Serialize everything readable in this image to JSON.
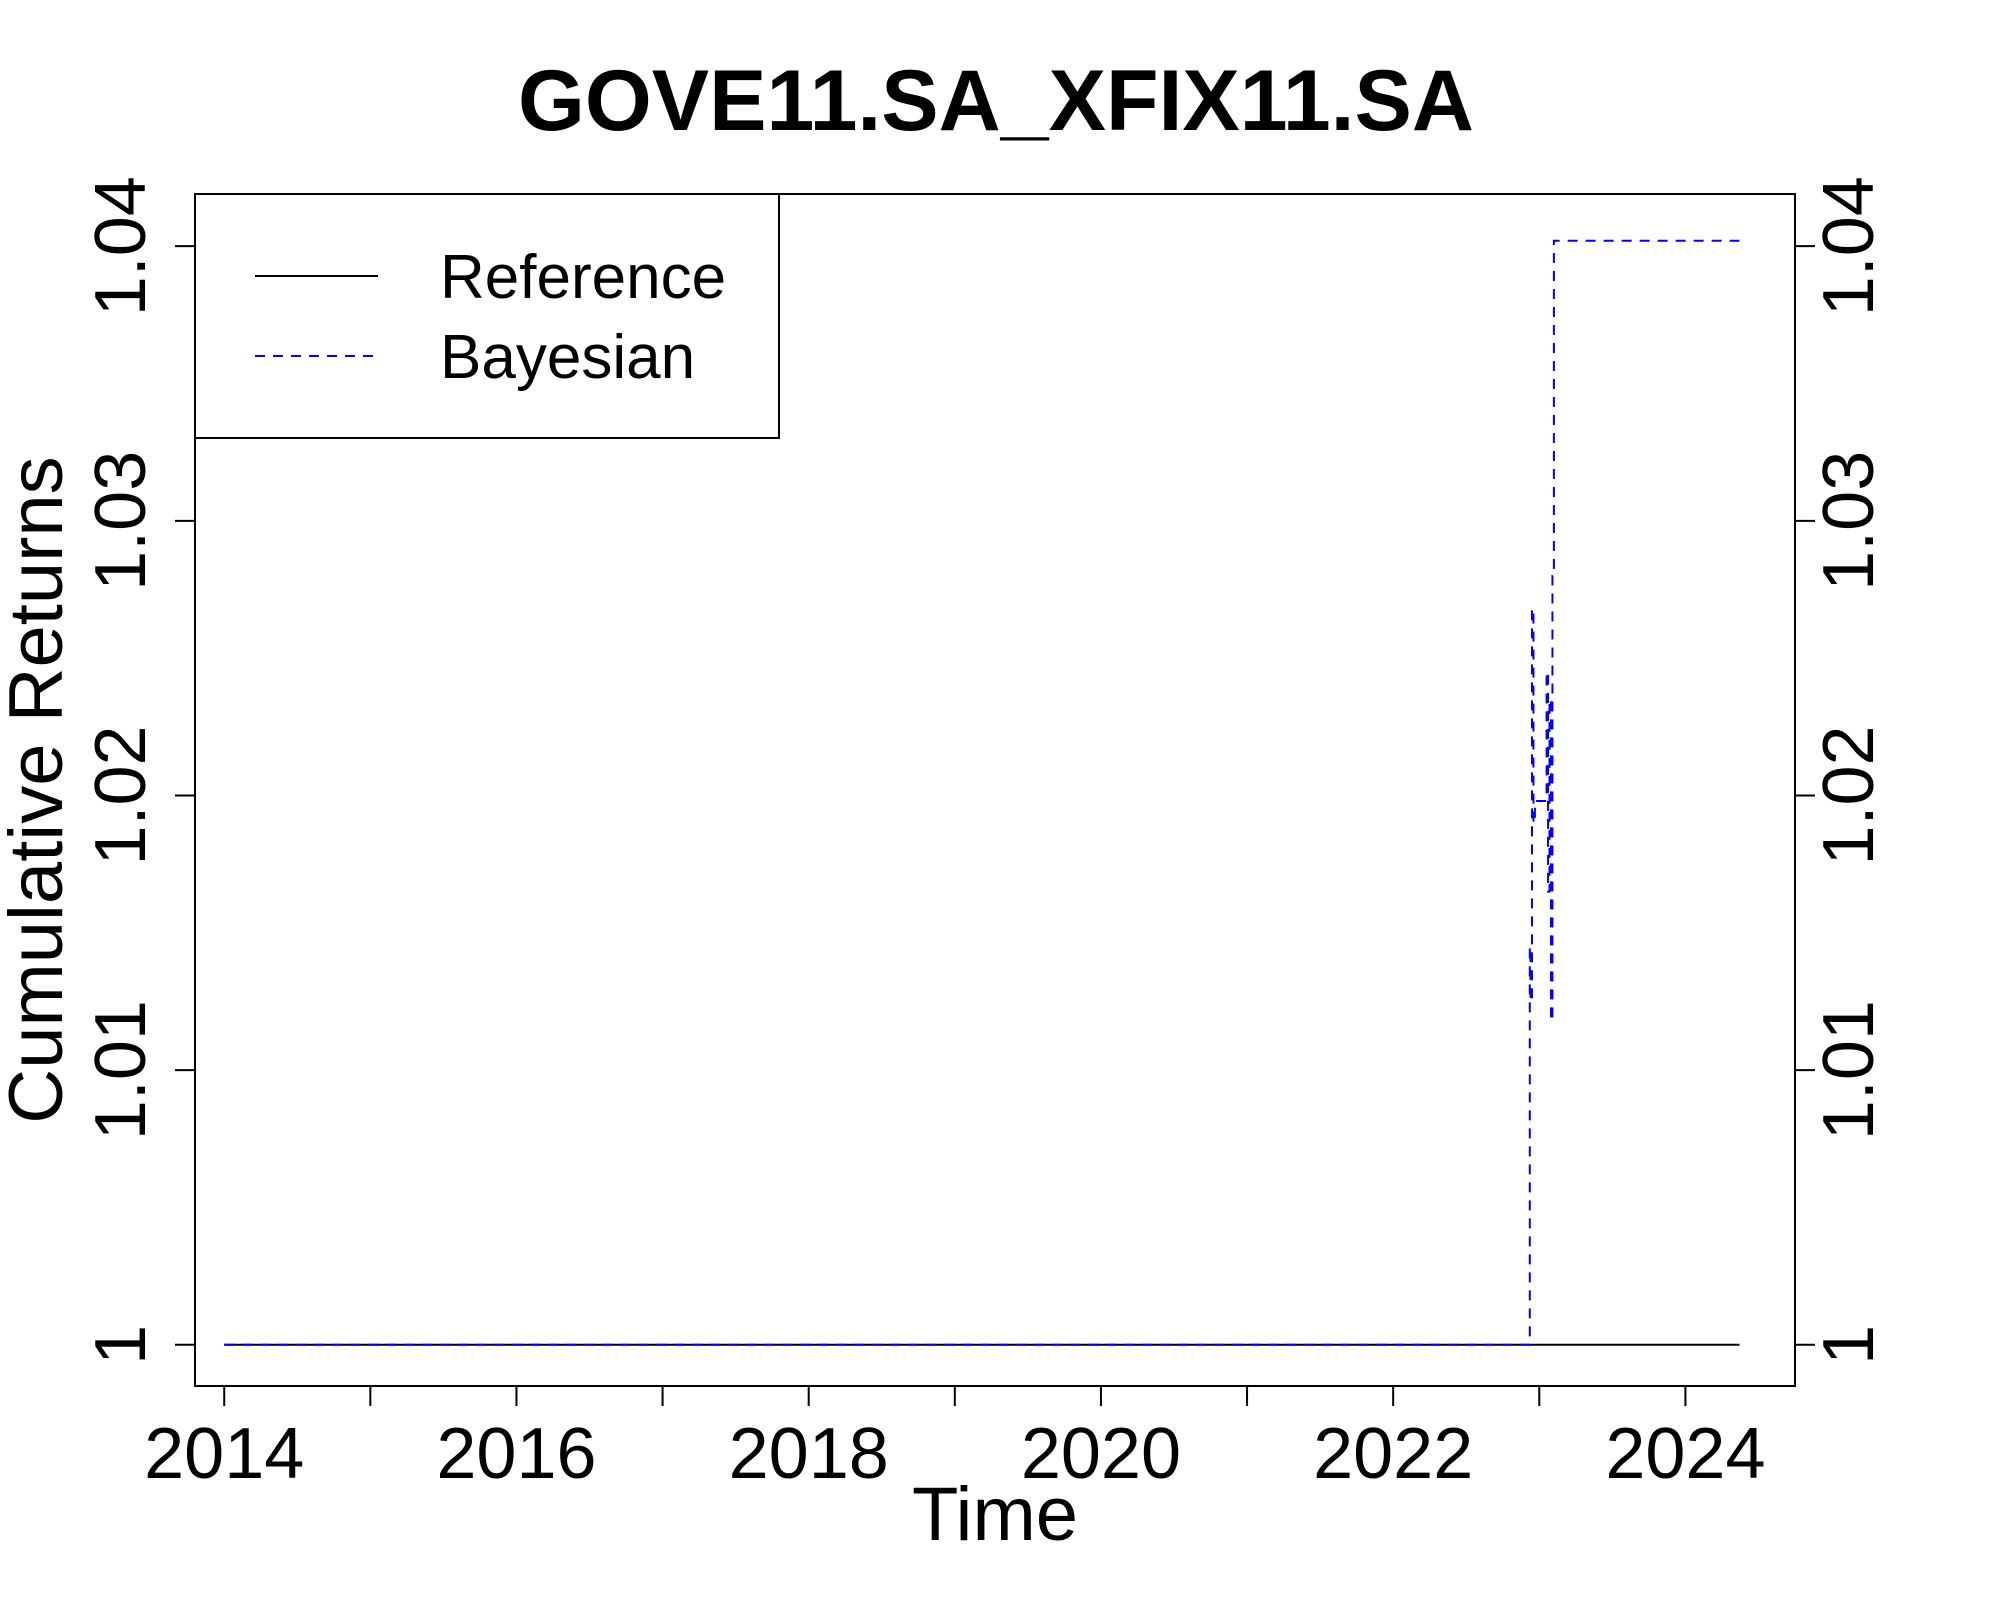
{
  "chart_data": {
    "type": "line",
    "title": "GOVE11.SA_XFIX11.SA",
    "xlabel": "Time",
    "ylabel": "Cumulative Returns",
    "xlim": [
      2013.8,
      2024.75
    ],
    "ylim": [
      0.9985,
      1.0419
    ],
    "x_ticks": [
      2014,
      2015,
      2016,
      2017,
      2018,
      2019,
      2020,
      2021,
      2022,
      2023,
      2024
    ],
    "x_tick_labels": [
      "2014",
      "",
      "2016",
      "",
      "2018",
      "",
      "2020",
      "",
      "2022",
      "",
      "2024"
    ],
    "y_ticks": [
      1.0,
      1.01,
      1.02,
      1.03,
      1.04
    ],
    "y_tick_labels": [
      "1",
      "1.01",
      "1.02",
      "1.03",
      "1.04"
    ],
    "right_axis": true,
    "grid": false,
    "legend": {
      "position": "top-left",
      "entries": [
        {
          "label": "Reference",
          "color": "#000000",
          "style": "solid"
        },
        {
          "label": "Bayesian",
          "color": "#0000ff",
          "style": "dashed"
        }
      ]
    },
    "series": [
      {
        "name": "Reference",
        "color": "#000000",
        "style": "solid",
        "x": [
          2014.0,
          2024.37
        ],
        "y": [
          1.0,
          1.0
        ]
      },
      {
        "name": "Bayesian",
        "color": "#0000ff",
        "style": "dashed",
        "step": true,
        "x": [
          2014.0,
          2022.93,
          2022.935,
          2022.94,
          2022.95,
          2022.96,
          2022.97,
          2023.0,
          2023.05,
          2023.06,
          2023.07,
          2023.08,
          2023.09,
          2023.1,
          2024.37
        ],
        "y": [
          1.0,
          1.0,
          1.0145,
          1.0125,
          1.0268,
          1.019,
          1.0198,
          1.0198,
          1.0245,
          1.0165,
          1.0235,
          1.0118,
          1.028,
          1.0402,
          1.0402
        ]
      }
    ]
  }
}
